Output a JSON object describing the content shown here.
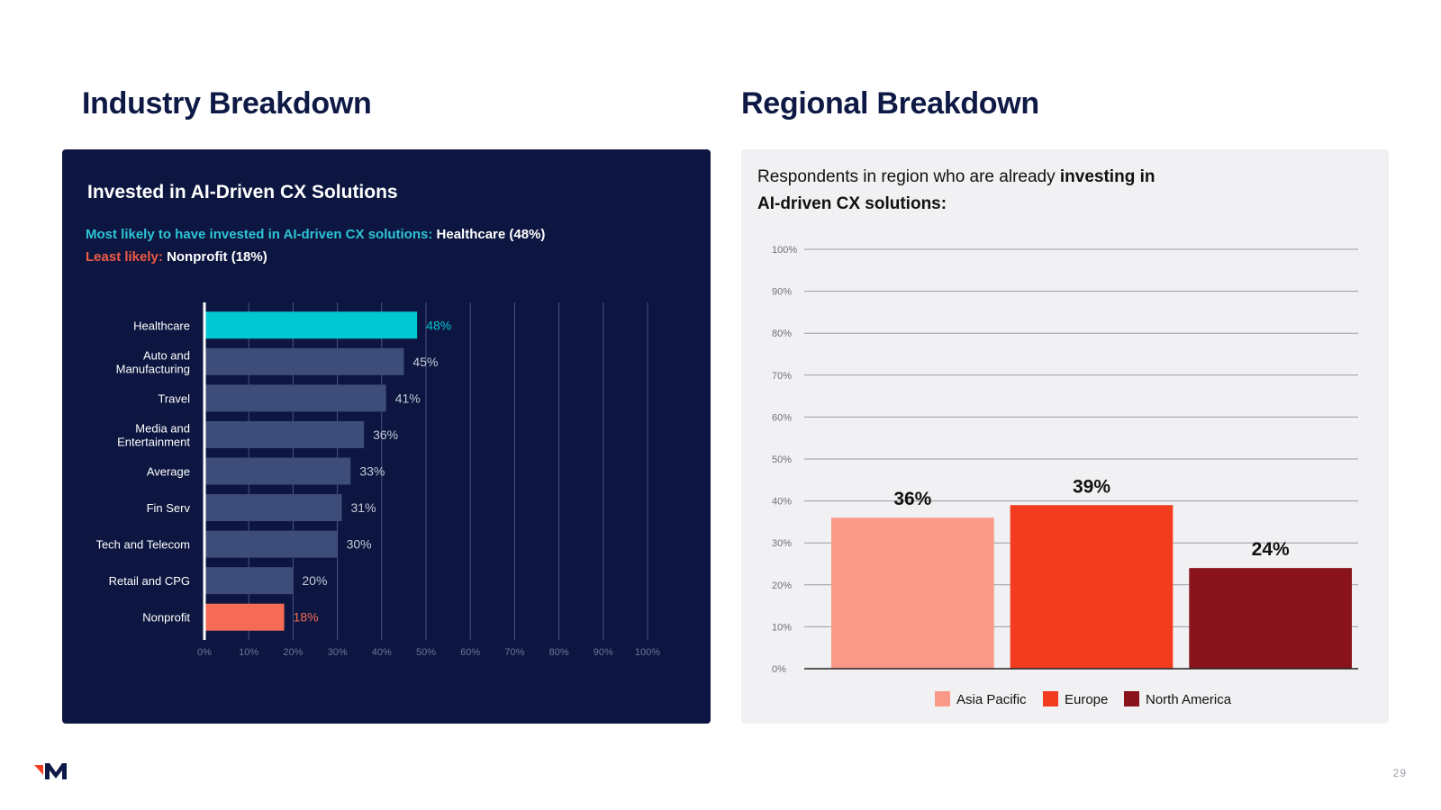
{
  "page": {
    "left_heading": "Industry Breakdown",
    "right_heading": "Regional Breakdown",
    "page_number": "29",
    "logo": "m-logo-icon"
  },
  "left_panel": {
    "title": "Invested in AI-Driven CX Solutions",
    "most_label": "Most likely to have invested in AI-driven CX solutions:",
    "most_value": "Healthcare (48%)",
    "least_label": "Least likely:",
    "least_value": "Nonprofit (18%)"
  },
  "right_panel": {
    "desc_prefix": "Respondents in region who are already ",
    "desc_bold": "investing in AI-driven CX solutions:"
  },
  "colors": {
    "navy": "#0c1640",
    "teal": "#00c8d2",
    "coral": "#f56b55",
    "slate_bar": "#3d4c78",
    "asia_pacific": "#fb9988",
    "europe": "#f23c1f",
    "north_america": "#88131a"
  },
  "chart_data": [
    {
      "type": "bar",
      "orientation": "horizontal",
      "title": "Invested in AI-Driven CX Solutions",
      "categories": [
        "Healthcare",
        "Auto and Manufacturing",
        "Travel",
        "Media and Entertainment",
        "Average",
        "Fin Serv",
        "Tech and Telecom",
        "Retail and CPG",
        "Nonprofit"
      ],
      "values": [
        48,
        45,
        41,
        36,
        33,
        31,
        30,
        20,
        18
      ],
      "data_labels": [
        "48%",
        "45%",
        "41%",
        "36%",
        "33%",
        "31%",
        "30%",
        "20%",
        "18%"
      ],
      "xlim": [
        0,
        100
      ],
      "x_ticks": [
        "0%",
        "10%",
        "20%",
        "30%",
        "40%",
        "50%",
        "60%",
        "70%",
        "80%",
        "90%",
        "100%"
      ],
      "grid": true,
      "highlight": {
        "max": "Healthcare",
        "min": "Nonprofit"
      }
    },
    {
      "type": "bar",
      "orientation": "vertical",
      "categories": [
        "Asia Pacific",
        "Europe",
        "North America"
      ],
      "values": [
        36,
        39,
        24
      ],
      "data_labels": [
        "36%",
        "39%",
        "24%"
      ],
      "ylim": [
        0,
        100
      ],
      "y_ticks": [
        "0%",
        "10%",
        "20%",
        "30%",
        "40%",
        "50%",
        "60%",
        "70%",
        "80%",
        "90%",
        "100%"
      ],
      "grid": true,
      "legend": {
        "position": "bottom",
        "entries": [
          "Asia Pacific",
          "Europe",
          "North America"
        ]
      }
    }
  ]
}
